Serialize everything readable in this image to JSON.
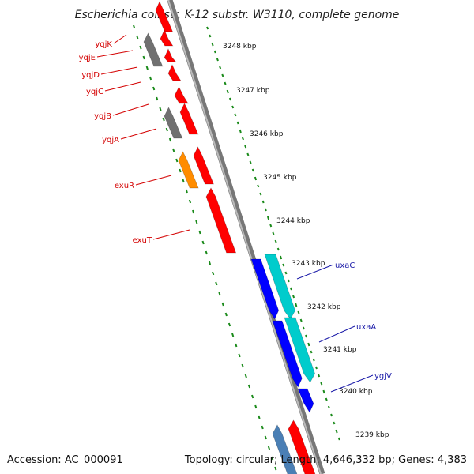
{
  "title": "Escherichia coli str. K-12 substr. W3110, complete genome",
  "footer": {
    "accession": "Accession: AC_000091",
    "summary": "Topology: circular; Length: 4,646,332 bp; Genes: 4,383"
  },
  "colors": {
    "backbone": "#808080",
    "ticks": "#1a8a1a",
    "forward_gene": "#ff0000",
    "forward_gene_alt": "#ff8c00",
    "reverse_gene": "#0000ff",
    "reverse_gene_alt": "#00cccc",
    "pseudo_gene": "#707070",
    "label_left": "#d40000",
    "label_right": "#1a1aa8"
  },
  "scale_labels": [
    {
      "text": "3248 kbp",
      "kbp": 3248
    },
    {
      "text": "3247 kbp",
      "kbp": 3247
    },
    {
      "text": "3246 kbp",
      "kbp": 3246
    },
    {
      "text": "3245 kbp",
      "kbp": 3245
    },
    {
      "text": "3244 kbp",
      "kbp": 3244
    },
    {
      "text": "3243 kbp",
      "kbp": 3243
    },
    {
      "text": "3242 kbp",
      "kbp": 3242
    },
    {
      "text": "3241 kbp",
      "kbp": 3241
    },
    {
      "text": "3240 kbp",
      "kbp": 3240
    },
    {
      "text": "3239 kbp",
      "kbp": 3239
    }
  ],
  "gene_labels_left": [
    {
      "name": "yqjK"
    },
    {
      "name": "yqjE"
    },
    {
      "name": "yqjD"
    },
    {
      "name": "yqjC"
    },
    {
      "name": "yqjB"
    },
    {
      "name": "yqjA"
    },
    {
      "name": "exuR"
    },
    {
      "name": "exuT"
    }
  ],
  "gene_labels_right": [
    {
      "name": "uxaC"
    },
    {
      "name": "uxaA"
    },
    {
      "name": "ygjV"
    }
  ]
}
